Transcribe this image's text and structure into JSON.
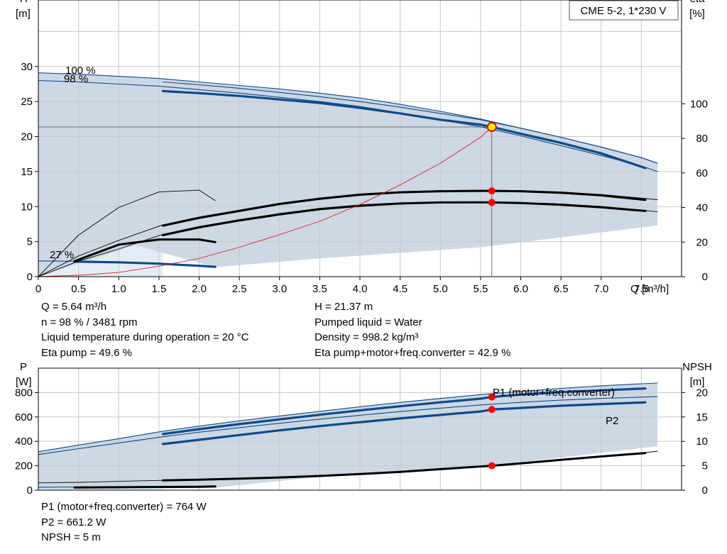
{
  "title_box": "CME 5-2, 1*230 V",
  "colors": {
    "grid": "#c8c8c8",
    "axis": "#000000",
    "fill": "#cdd8e4",
    "fill_light": "#e4edf6",
    "blue": "#0d4a8a",
    "black": "#000000",
    "red_line": "#e02020",
    "marker": "#ff0000",
    "op_point_fill": "#ffff00"
  },
  "chart_data": [
    {
      "id": "head",
      "type": "line",
      "x_axis": {
        "label": "Q [m³/h]",
        "range": [
          0,
          8
        ],
        "ticks": [
          "0",
          "0.5",
          "1.0",
          "1.5",
          "2.0",
          "2.5",
          "3.0",
          "3.5",
          "4.0",
          "4.5",
          "5.0",
          "5.5",
          "6.0",
          "6.5",
          "7.0",
          "7.5"
        ]
      },
      "y_left": {
        "label_line1": "H",
        "label_line2": "[m]",
        "range": [
          0,
          39.5
        ],
        "ticks": [
          "0",
          "5",
          "10",
          "15",
          "20",
          "25",
          "30"
        ]
      },
      "y_right": {
        "label_line1": "eta",
        "label_line2": "[%]",
        "range": [
          0,
          160
        ],
        "ticks": [
          "0",
          "20",
          "40",
          "60",
          "80",
          "100"
        ]
      },
      "grid": true,
      "speed_labels": [
        "100 %",
        "98 %",
        "27 %"
      ],
      "series": [
        {
          "axis": "left",
          "style": "thin-blue",
          "x": [
            0,
            0.5,
            1.0,
            1.5,
            2.0,
            2.5,
            3.0,
            3.5,
            4.0,
            4.5,
            5.0,
            5.5,
            6.0,
            6.5,
            7.0,
            7.5,
            7.7
          ],
          "y": [
            29.1,
            28.9,
            28.6,
            28.3,
            27.8,
            27.3,
            26.8,
            26.2,
            25.5,
            24.6,
            23.6,
            22.5,
            21.2,
            19.9,
            18.5,
            17.0,
            16.2
          ]
        },
        {
          "axis": "left",
          "style": "thin-blue",
          "x": [
            0,
            0.5,
            1.0,
            1.5,
            2.0,
            2.5,
            3.0,
            3.5,
            4.0,
            4.5,
            5.0,
            5.5,
            6.0,
            6.5,
            7.0,
            7.5,
            7.7
          ],
          "y": [
            28.0,
            27.8,
            27.5,
            27.2,
            26.7,
            26.2,
            25.6,
            25.0,
            24.3,
            23.4,
            22.4,
            21.4,
            20.1,
            18.7,
            17.3,
            15.8,
            15.0
          ]
        },
        {
          "axis": "left",
          "style": "thick-blue",
          "x": [
            1.55,
            2.0,
            2.5,
            3.0,
            3.5,
            4.0,
            4.5,
            5.0,
            5.5,
            5.64,
            6.0,
            6.5,
            7.0,
            7.5,
            7.55
          ],
          "y": [
            26.5,
            26.2,
            25.8,
            25.3,
            24.8,
            24.1,
            23.3,
            22.4,
            21.7,
            21.37,
            20.4,
            19.1,
            17.6,
            15.7,
            15.5
          ]
        },
        {
          "axis": "left",
          "style": "thin-blue",
          "x": [
            1.55,
            2.0,
            2.5,
            3.0,
            3.5,
            4.0,
            4.5,
            5.0,
            5.5,
            6.0,
            6.5,
            7.0,
            7.5,
            7.7
          ],
          "y": [
            27.8,
            27.4,
            26.9,
            26.3,
            25.7,
            25.0,
            24.2,
            23.3,
            22.4,
            21.2,
            19.9,
            18.5,
            17.0,
            16.2
          ]
        },
        {
          "axis": "left",
          "style": "thick-blue",
          "x": [
            0.45,
            1.0,
            1.5,
            2.0,
            2.2
          ],
          "y": [
            2.15,
            2.05,
            1.85,
            1.55,
            1.4
          ]
        },
        {
          "axis": "left",
          "style": "thin-blue",
          "x": [
            0,
            0.45,
            1.0,
            1.5,
            2.0,
            2.2
          ],
          "y": [
            2.25,
            2.2,
            2.1,
            1.9,
            1.6,
            1.45
          ]
        },
        {
          "axis": "right",
          "style": "thin-black",
          "x": [
            0,
            0.5,
            1.0,
            1.5,
            2.0,
            2.2
          ],
          "y": [
            0,
            24,
            40,
            49,
            50,
            44
          ]
        },
        {
          "axis": "right",
          "style": "thin-black",
          "x": [
            0,
            0.5,
            1.0,
            1.55,
            2.0,
            2.5,
            3.0,
            3.5,
            4.0,
            4.5,
            5.0,
            5.5,
            6.0,
            6.5,
            7.0,
            7.5,
            7.7
          ],
          "y": [
            0,
            12,
            21,
            30,
            34.5,
            38.5,
            42.5,
            45.5,
            47.8,
            49.1,
            49.8,
            50,
            49.8,
            49,
            47.5,
            45.4,
            44.5
          ]
        },
        {
          "axis": "right",
          "style": "thick-black",
          "x": [
            1.55,
            2.0,
            2.5,
            3.0,
            3.5,
            4.0,
            4.5,
            5.0,
            5.5,
            5.64,
            6.0,
            6.5,
            7.0,
            7.5,
            7.55
          ],
          "y": [
            29.5,
            34,
            38,
            42,
            45,
            47.4,
            48.8,
            49.4,
            49.6,
            49.6,
            49.4,
            48.5,
            47,
            44.6,
            44.4
          ]
        },
        {
          "axis": "right",
          "style": "thin-black",
          "x": [
            0,
            0.5,
            1.0,
            1.55,
            2.0,
            2.5,
            3.0,
            3.5,
            4.0,
            4.5,
            5.0,
            5.5,
            6.0,
            6.5,
            7.0,
            7.5,
            7.7
          ],
          "y": [
            0,
            9,
            16,
            24.5,
            29,
            33,
            36.5,
            39.5,
            41.5,
            42.7,
            43.2,
            43.2,
            42.9,
            42,
            40.6,
            38.5,
            37.5
          ]
        },
        {
          "axis": "right",
          "style": "thick-black",
          "x": [
            1.55,
            2.0,
            2.5,
            3.0,
            3.5,
            4.0,
            4.5,
            5.0,
            5.5,
            5.64,
            6.0,
            6.5,
            7.0,
            7.5,
            7.55
          ],
          "y": [
            24,
            28.5,
            32.5,
            36,
            39,
            41,
            42.3,
            42.9,
            43,
            42.9,
            42.6,
            41.6,
            40.1,
            38.2,
            38
          ]
        },
        {
          "axis": "right",
          "style": "thick-black",
          "x": [
            0.45,
            1.0,
            1.5,
            2.0,
            2.2
          ],
          "y": [
            9,
            18.5,
            21.5,
            21.5,
            20
          ]
        },
        {
          "axis": "left",
          "style": "thin-red",
          "x": [
            0,
            0.5,
            1.0,
            1.5,
            2.0,
            2.5,
            3.0,
            3.5,
            4.0,
            4.5,
            5.0,
            5.5,
            5.64
          ],
          "y": [
            0,
            0.2,
            0.6,
            1.5,
            2.6,
            4.2,
            6.0,
            7.9,
            10.3,
            13.1,
            16.2,
            19.9,
            21.37
          ]
        }
      ],
      "markers": [
        {
          "axis": "left",
          "x": 5.64,
          "y": 21.37,
          "kind": "operating-point"
        },
        {
          "axis": "right",
          "x": 5.64,
          "y": 49.6,
          "kind": "dot"
        },
        {
          "axis": "right",
          "x": 5.64,
          "y": 42.9,
          "kind": "dot"
        }
      ],
      "operating_point": {
        "x": 5.64,
        "y": 21.37
      }
    },
    {
      "id": "power",
      "type": "line",
      "x_axis": {
        "range": [
          0,
          8
        ]
      },
      "y_left": {
        "label_line1": "P",
        "label_line2": "[W]",
        "range": [
          0,
          1000
        ],
        "ticks": [
          "0",
          "200",
          "400",
          "600",
          "800"
        ]
      },
      "y_right": {
        "label_line1": "NPSH",
        "label_line2": "[m]",
        "range": [
          0,
          25
        ],
        "ticks": [
          "0",
          "5",
          "10",
          "15",
          "20"
        ]
      },
      "grid": true,
      "series_labels": [
        "P1 (motor+freq.converter)",
        "P2"
      ],
      "series": [
        {
          "axis": "left",
          "style": "thin-blue",
          "x": [
            0,
            0.5,
            1.0,
            1.55,
            2.0,
            2.5,
            3.0,
            3.5,
            4.0,
            4.5,
            5.0,
            5.5,
            6.0,
            6.5,
            7.0,
            7.5,
            7.7
          ],
          "y": [
            315,
            370,
            422,
            483,
            525,
            568,
            608,
            646,
            684,
            719,
            752,
            783,
            810,
            834,
            855,
            872,
            878
          ]
        },
        {
          "axis": "left",
          "style": "thick-blue",
          "x": [
            1.55,
            2.0,
            2.5,
            3.0,
            3.5,
            4.0,
            4.5,
            5.0,
            5.5,
            5.64,
            6.0,
            6.5,
            7.0,
            7.5,
            7.55
          ],
          "y": [
            460,
            500,
            541,
            580,
            618,
            654,
            688,
            720,
            750,
            764,
            783,
            803,
            818,
            832,
            833
          ]
        },
        {
          "axis": "left",
          "style": "thin-blue",
          "x": [
            0,
            0.5,
            1.0,
            1.55,
            2.0,
            2.5,
            3.0,
            3.5,
            4.0,
            4.5,
            5.0,
            5.5,
            6.0,
            6.5,
            7.0,
            7.5,
            7.7
          ],
          "y": [
            292,
            340,
            386,
            438,
            475,
            512,
            548,
            582,
            614,
            644,
            672,
            698,
            720,
            738,
            752,
            763,
            766
          ]
        },
        {
          "axis": "left",
          "style": "thick-blue",
          "x": [
            1.55,
            2.0,
            2.5,
            3.0,
            3.5,
            4.0,
            4.5,
            5.0,
            5.5,
            5.64,
            6.0,
            6.5,
            7.0,
            7.5,
            7.55
          ],
          "y": [
            378,
            413,
            452,
            490,
            525,
            557,
            588,
            617,
            645,
            661.2,
            674,
            692,
            706,
            718,
            720
          ]
        },
        {
          "axis": "left",
          "style": "thin-blue",
          "x": [
            0,
            0.45,
            1.0,
            1.5,
            2.0,
            2.2
          ],
          "y": [
            24,
            26,
            28,
            30,
            32,
            33
          ]
        },
        {
          "axis": "right",
          "style": "thin-black",
          "x": [
            0,
            0.5,
            1.0,
            1.55,
            2.0,
            2.5,
            3.0,
            3.5,
            4.0,
            4.5,
            5.0,
            5.5,
            6.0,
            6.5,
            7.0,
            7.5,
            7.7
          ],
          "y": [
            1.5,
            1.6,
            1.8,
            2.0,
            2.15,
            2.35,
            2.6,
            2.9,
            3.3,
            3.75,
            4.3,
            4.9,
            5.5,
            6.2,
            6.9,
            7.6,
            8.0
          ]
        },
        {
          "axis": "right",
          "style": "thick-black",
          "x": [
            1.55,
            2.0,
            2.5,
            3.0,
            3.5,
            4.0,
            4.5,
            5.0,
            5.5,
            5.64,
            6.0,
            6.5,
            7.0,
            7.5,
            7.55
          ],
          "y": [
            2.0,
            2.15,
            2.35,
            2.6,
            2.9,
            3.3,
            3.75,
            4.3,
            4.85,
            5.0,
            5.5,
            6.2,
            6.9,
            7.55,
            7.6
          ]
        },
        {
          "axis": "right",
          "style": "thick-black",
          "x": [
            0.45,
            1.0,
            1.5,
            2.0,
            2.2
          ],
          "y": [
            0.55,
            0.6,
            0.65,
            0.7,
            0.75
          ]
        }
      ],
      "markers": [
        {
          "axis": "left",
          "x": 5.64,
          "y": 764,
          "kind": "dot"
        },
        {
          "axis": "left",
          "x": 5.64,
          "y": 661.2,
          "kind": "dot"
        },
        {
          "axis": "right",
          "x": 5.64,
          "y": 5,
          "kind": "dot"
        }
      ]
    }
  ],
  "info_head_left": [
    "Q = 5.64 m³/h",
    "n = 98 % / 3481 rpm",
    "Liquid temperature during operation = 20 °C",
    "Eta pump = 49.6 %"
  ],
  "info_head_right": [
    "H = 21.37 m",
    "Pumped liquid = Water",
    "Density = 998.2 kg/m³",
    "Eta pump+motor+freq.converter = 42.9 %"
  ],
  "info_power": [
    "P1 (motor+freq.converter) = 764 W",
    "P2 = 661.2 W",
    "NPSH = 5 m"
  ]
}
